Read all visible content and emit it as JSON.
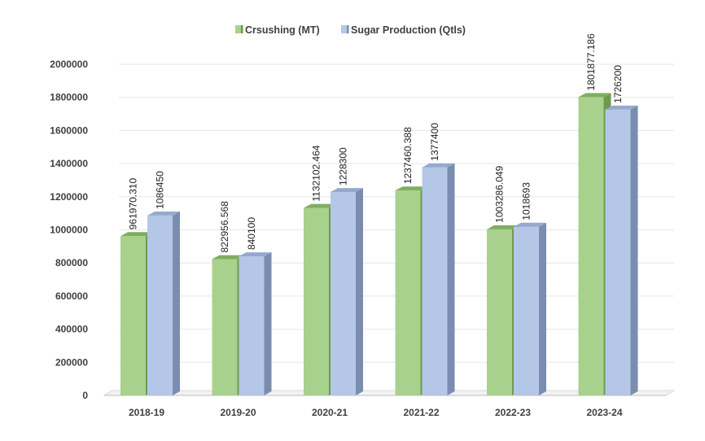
{
  "chart_data": {
    "type": "bar",
    "categories": [
      "2018-19",
      "2019-20",
      "2020-21",
      "2021-22",
      "2022-23",
      "2023-24"
    ],
    "series": [
      {
        "name": "Crsushing (MT)",
        "values": [
          961970.31,
          822956.568,
          1132102.464,
          1237460.388,
          1003286.049,
          1801877.186
        ],
        "labels": [
          "961970.310",
          "822956.568",
          "1132102.464",
          "1237460.388",
          "1003286.049",
          "1801877.186"
        ],
        "color": "#a9d18e",
        "side_color": "#6f9a4e",
        "top_color": "#7fae60"
      },
      {
        "name": "Sugar Production (Qtls)",
        "values": [
          1086450,
          840100,
          1228300,
          1377400,
          1018693,
          1726200
        ],
        "labels": [
          "1086450",
          "840100",
          "1228300",
          "1377400",
          "1018693",
          "1726200"
        ],
        "color": "#b4c7e7",
        "side_color": "#7a8db0",
        "top_color": "#95a9cf"
      }
    ],
    "yticks": [
      "0",
      "200000",
      "400000",
      "600000",
      "800000",
      "1000000",
      "1200000",
      "1400000",
      "1600000",
      "1800000",
      "2000000"
    ],
    "ylim": [
      0,
      2000000
    ],
    "grid": true,
    "legend_position": "top",
    "title": "",
    "xlabel": "",
    "ylabel": ""
  }
}
